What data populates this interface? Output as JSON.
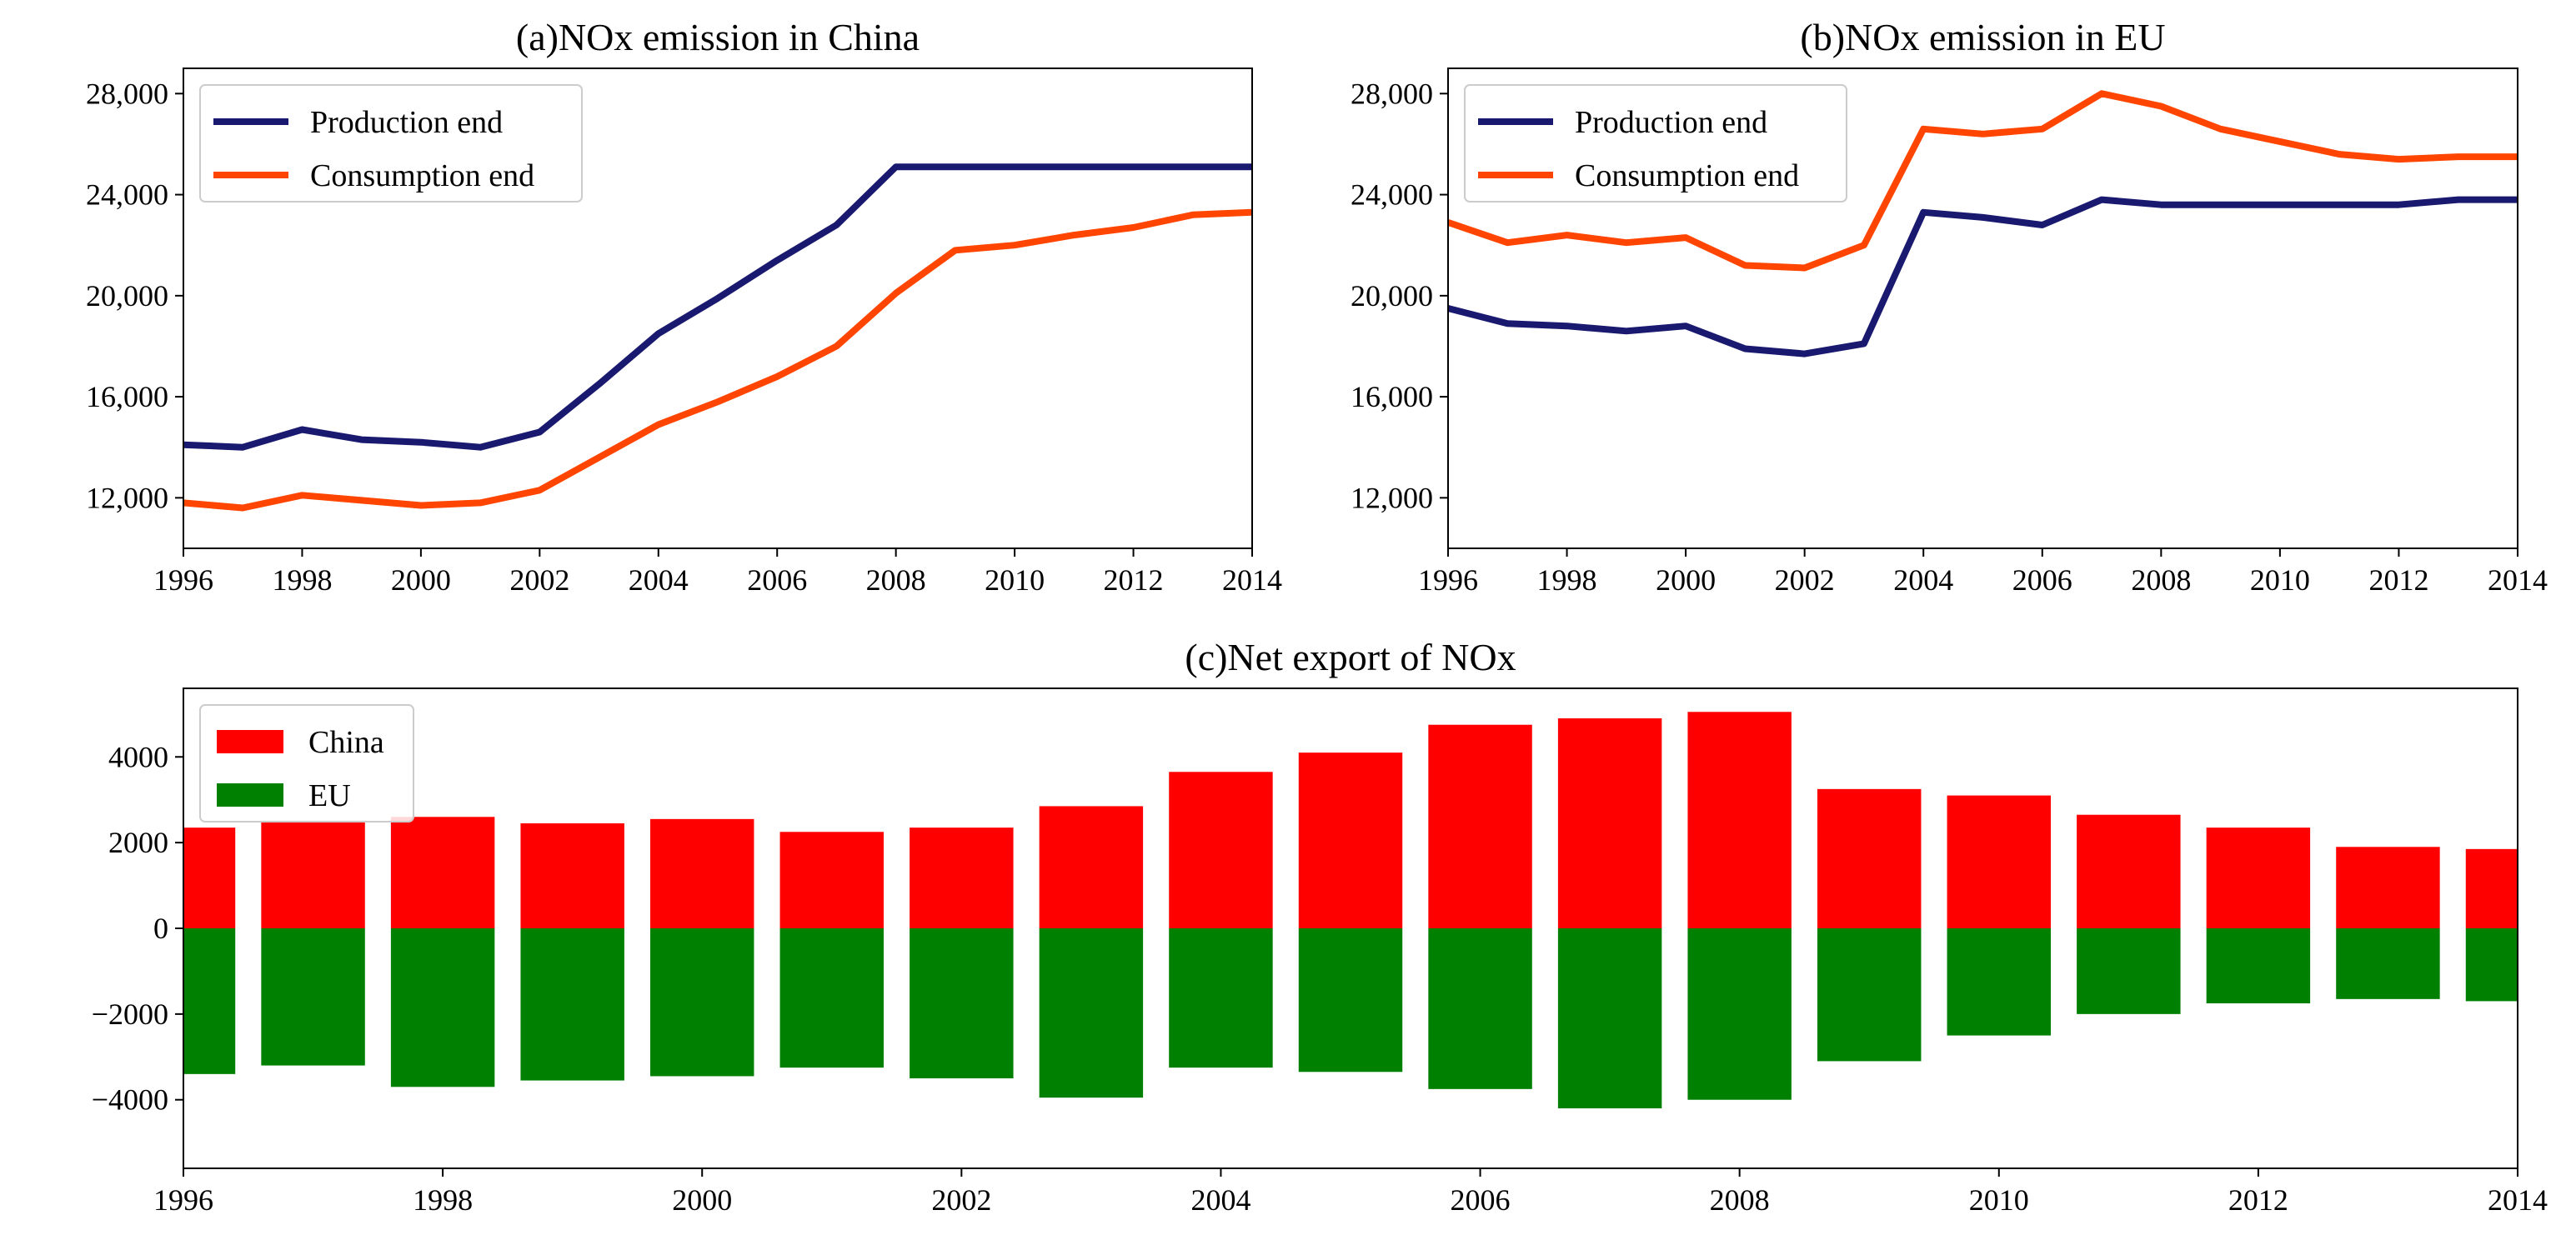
{
  "colors": {
    "production": "#191970",
    "consumption": "#ff4500",
    "china_bar": "#ff0000",
    "eu_bar": "#008000"
  },
  "chart_data": [
    {
      "id": "china",
      "type": "line",
      "title": "(a)NOx emission in China",
      "x": [
        1996,
        1997,
        1998,
        1999,
        2000,
        2001,
        2002,
        2003,
        2004,
        2005,
        2006,
        2007,
        2008,
        2009,
        2010,
        2011,
        2012,
        2013,
        2014
      ],
      "xlim": [
        1996,
        2014
      ],
      "xticks": [
        1996,
        1998,
        2000,
        2002,
        2004,
        2006,
        2008,
        2010,
        2012,
        2014
      ],
      "ylim": [
        10000,
        29000
      ],
      "yticks": [
        12000,
        16000,
        20000,
        24000,
        28000
      ],
      "ytick_labels": [
        "12,000",
        "16,000",
        "20,000",
        "24,000",
        "28,000"
      ],
      "legend": "top-left",
      "series": [
        {
          "name": "Production end",
          "values": [
            14100,
            14000,
            14700,
            14300,
            14200,
            14000,
            14600,
            16500,
            18500,
            19900,
            21400,
            22800,
            25100,
            25100,
            25100,
            25100,
            25100,
            25100,
            25100
          ]
        },
        {
          "name": "Consumption end",
          "values": [
            11800,
            11600,
            12100,
            11900,
            11700,
            11800,
            12300,
            13600,
            14900,
            15800,
            16800,
            18000,
            20100,
            21800,
            22000,
            22400,
            22700,
            23200,
            23300
          ]
        }
      ]
    },
    {
      "id": "eu",
      "type": "line",
      "title": "(b)NOx emission in EU",
      "x": [
        1996,
        1997,
        1998,
        1999,
        2000,
        2001,
        2002,
        2003,
        2004,
        2005,
        2006,
        2007,
        2008,
        2009,
        2010,
        2011,
        2012,
        2013,
        2014
      ],
      "xlim": [
        1996,
        2014
      ],
      "xticks": [
        1996,
        1998,
        2000,
        2002,
        2004,
        2006,
        2008,
        2010,
        2012,
        2014
      ],
      "ylim": [
        10000,
        29000
      ],
      "yticks": [
        12000,
        16000,
        20000,
        24000,
        28000
      ],
      "ytick_labels": [
        "12,000",
        "16,000",
        "20,000",
        "24,000",
        "28,000"
      ],
      "legend": "top-left",
      "series": [
        {
          "name": "Production end",
          "values": [
            19500,
            18900,
            18800,
            18600,
            18800,
            17900,
            17700,
            18100,
            23300,
            23100,
            22800,
            23800,
            23600,
            23600,
            23600,
            23600,
            23600,
            23800,
            23800
          ]
        },
        {
          "name": "Consumption end",
          "values": [
            22900,
            22100,
            22400,
            22100,
            22300,
            21200,
            21100,
            22000,
            26600,
            26400,
            26600,
            28000,
            27500,
            26600,
            26100,
            25600,
            25400,
            25500,
            25500
          ]
        }
      ]
    },
    {
      "id": "net",
      "type": "bar",
      "title": "(c)Net export of NOx",
      "x": [
        1996,
        1997,
        1998,
        1999,
        2000,
        2001,
        2002,
        2003,
        2004,
        2005,
        2006,
        2007,
        2008,
        2009,
        2010,
        2011,
        2012,
        2013,
        2014
      ],
      "xlim": [
        1996,
        2014
      ],
      "xticks": [
        1996,
        1998,
        2000,
        2002,
        2004,
        2006,
        2008,
        2010,
        2012,
        2014
      ],
      "ylim": [
        -5600,
        5600
      ],
      "yticks": [
        -4000,
        -2000,
        0,
        2000,
        4000
      ],
      "ytick_labels": [
        "−4000",
        "−2000",
        "0",
        "2000",
        "4000"
      ],
      "legend": "top-left",
      "series": [
        {
          "name": "China",
          "values": [
            2350,
            2500,
            2600,
            2450,
            2550,
            2250,
            2350,
            2850,
            3650,
            4100,
            4750,
            4900,
            5050,
            3250,
            3100,
            2650,
            2350,
            1900,
            1850
          ]
        },
        {
          "name": "EU",
          "values": [
            -3400,
            -3200,
            -3700,
            -3550,
            -3450,
            -3250,
            -3500,
            -3950,
            -3250,
            -3350,
            -3750,
            -4200,
            -4000,
            -3100,
            -2500,
            -2000,
            -1750,
            -1650,
            -1700
          ]
        }
      ]
    }
  ]
}
